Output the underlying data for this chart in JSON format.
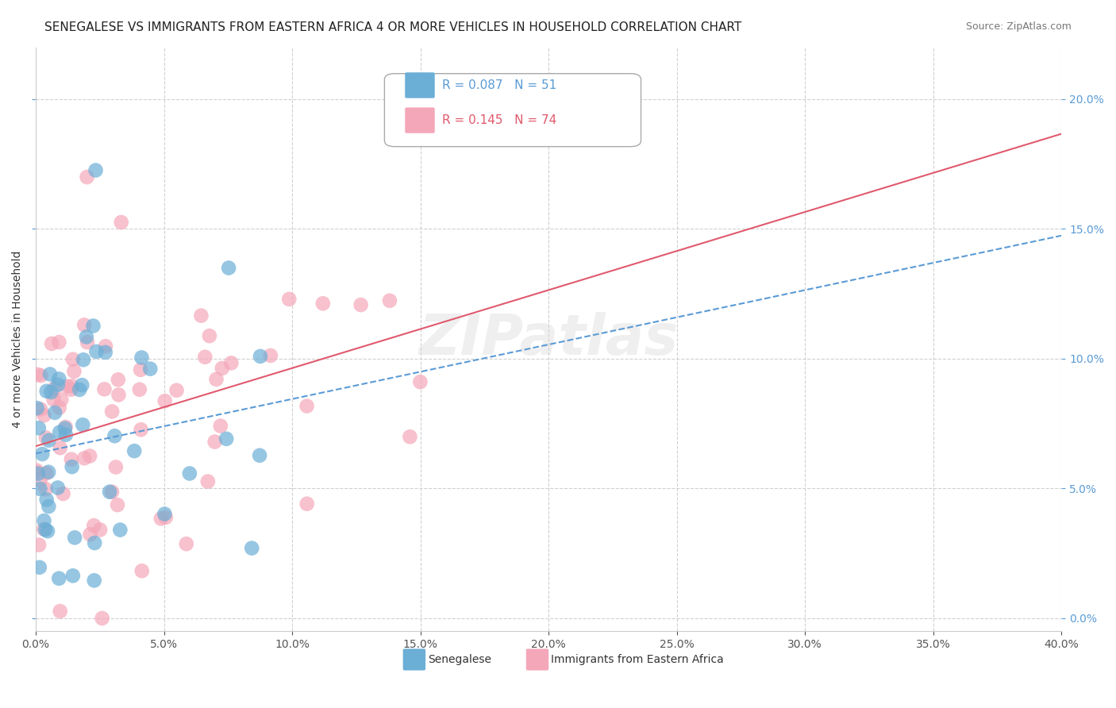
{
  "title": "SENEGALESE VS IMMIGRANTS FROM EASTERN AFRICA 4 OR MORE VEHICLES IN HOUSEHOLD CORRELATION CHART",
  "source": "Source: ZipAtlas.com",
  "ylabel": "4 or more Vehicles in Household",
  "xlabel": "",
  "xlim": [
    0.0,
    0.4
  ],
  "ylim": [
    -0.005,
    0.22
  ],
  "xticks": [
    0.0,
    0.05,
    0.1,
    0.15,
    0.2,
    0.25,
    0.3,
    0.35,
    0.4
  ],
  "yticks": [
    0.0,
    0.05,
    0.1,
    0.15,
    0.2
  ],
  "ytick_labels": [
    "0.0%",
    "5.0%",
    "10.0%",
    "15.0%",
    "20.0%"
  ],
  "xtick_labels": [
    "0.0%",
    "",
    "",
    "",
    "",
    "",
    "",
    "",
    "40.0%"
  ],
  "legend_entries": [
    {
      "label": "R = 0.087   N = 51",
      "color": "#6baed6"
    },
    {
      "label": "R = 0.145   N = 74",
      "color": "#fb9a99"
    }
  ],
  "series1_color": "#6baed6",
  "series2_color": "#f4a7b9",
  "trendline1_color": "#5b9bd5",
  "trendline2_color": "#e05a6d",
  "R1": 0.087,
  "N1": 51,
  "R2": 0.145,
  "N2": 74,
  "watermark": "ZIPatlas",
  "background_color": "#ffffff",
  "grid_color": "#d0d0d0",
  "title_fontsize": 11,
  "axis_label_fontsize": 10,
  "tick_fontsize": 10,
  "seed1": 42,
  "seed2": 99
}
